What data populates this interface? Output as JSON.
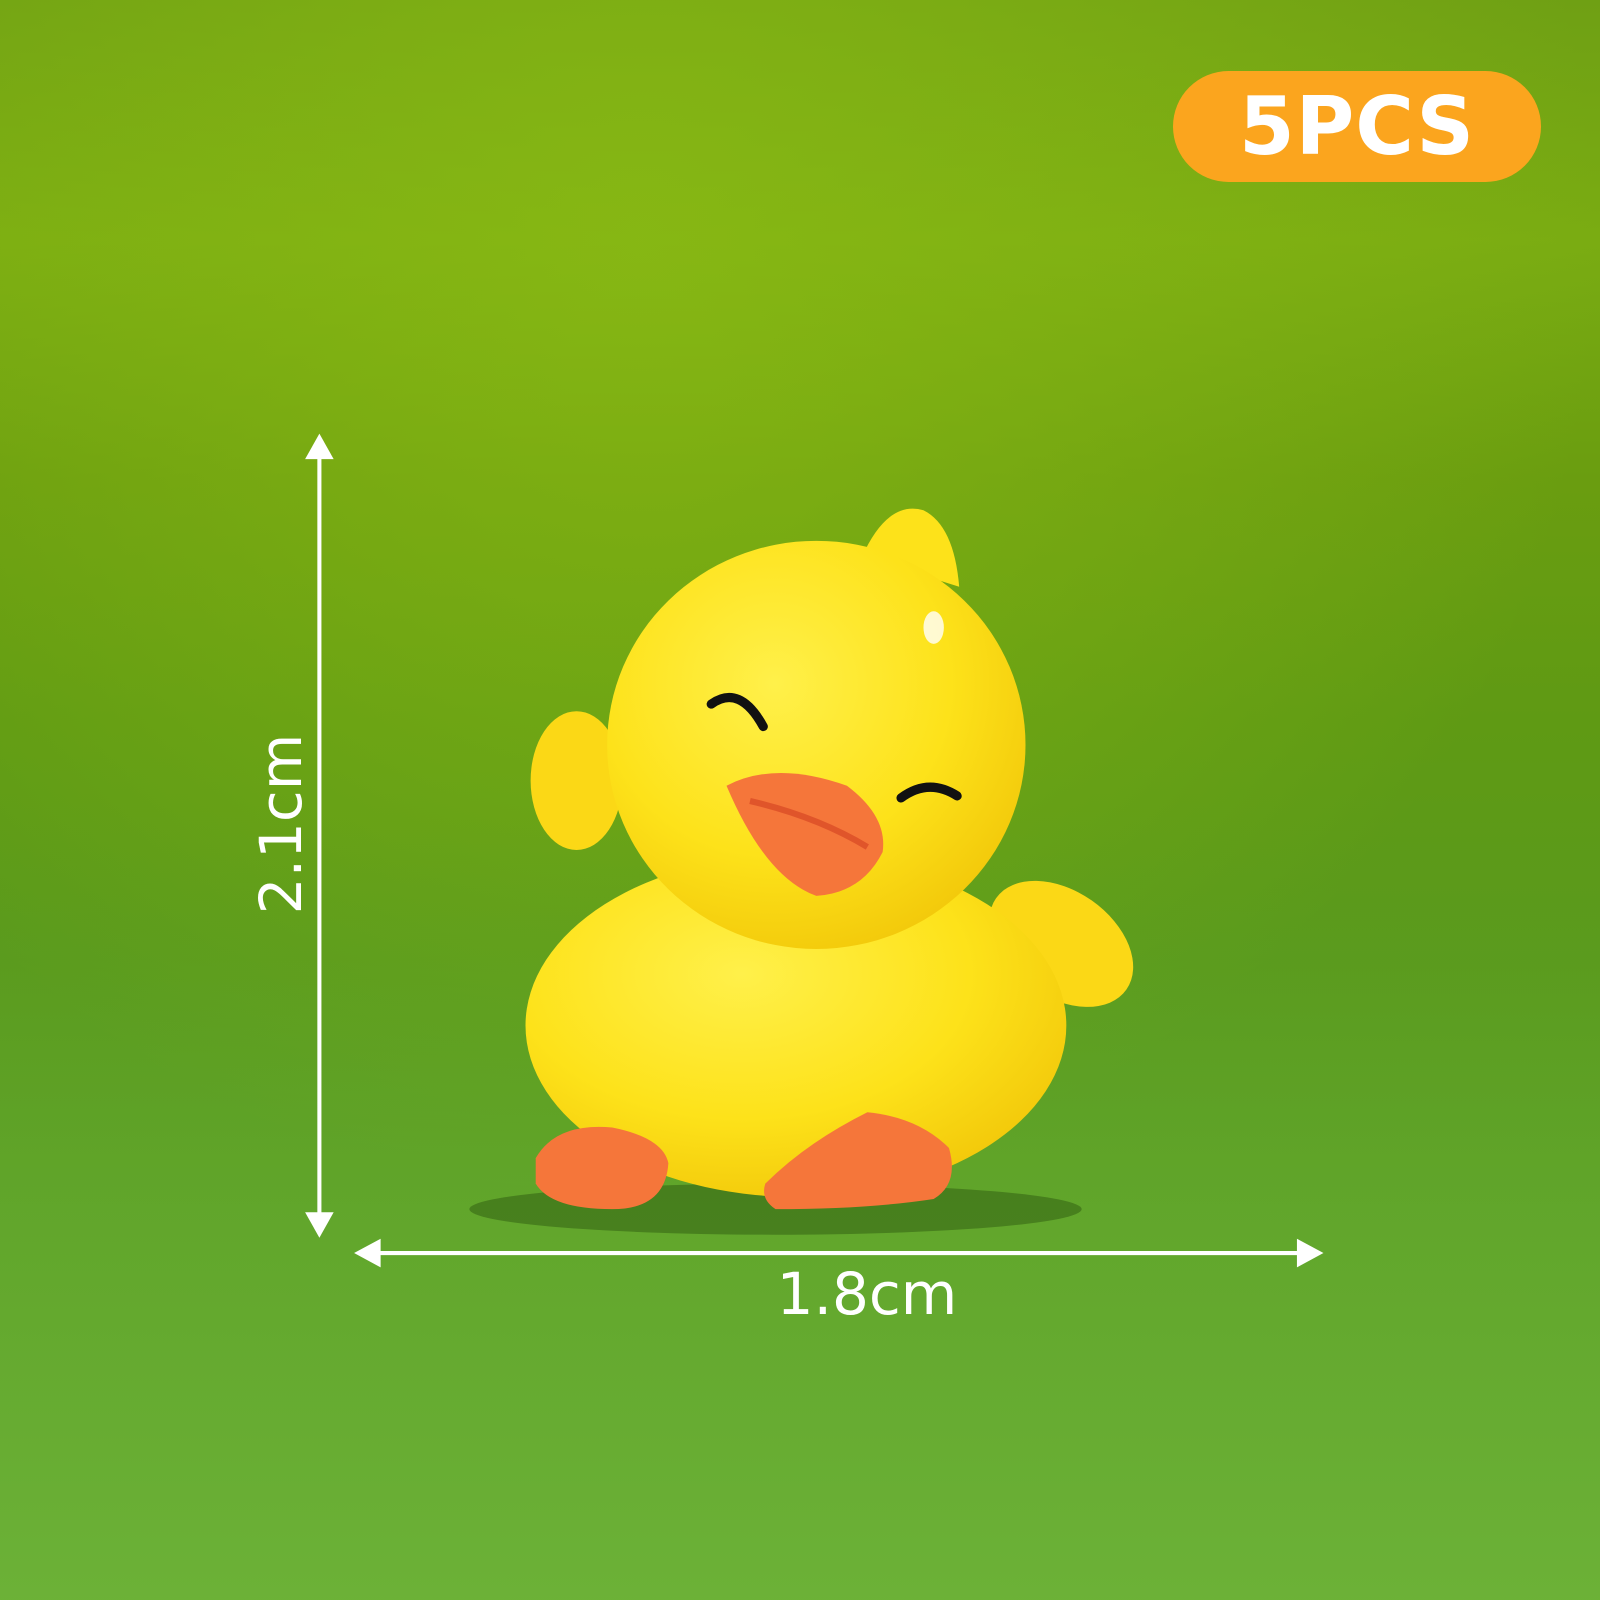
{
  "badge": {
    "label": "5PCS",
    "color": "#fba51e"
  },
  "dimensions": {
    "height": "2.1cm",
    "width": "1.8cm"
  },
  "colors": {
    "duck_body": "#fde21a",
    "beak_feet": "#f5763a",
    "grass": "#5f9a14"
  }
}
